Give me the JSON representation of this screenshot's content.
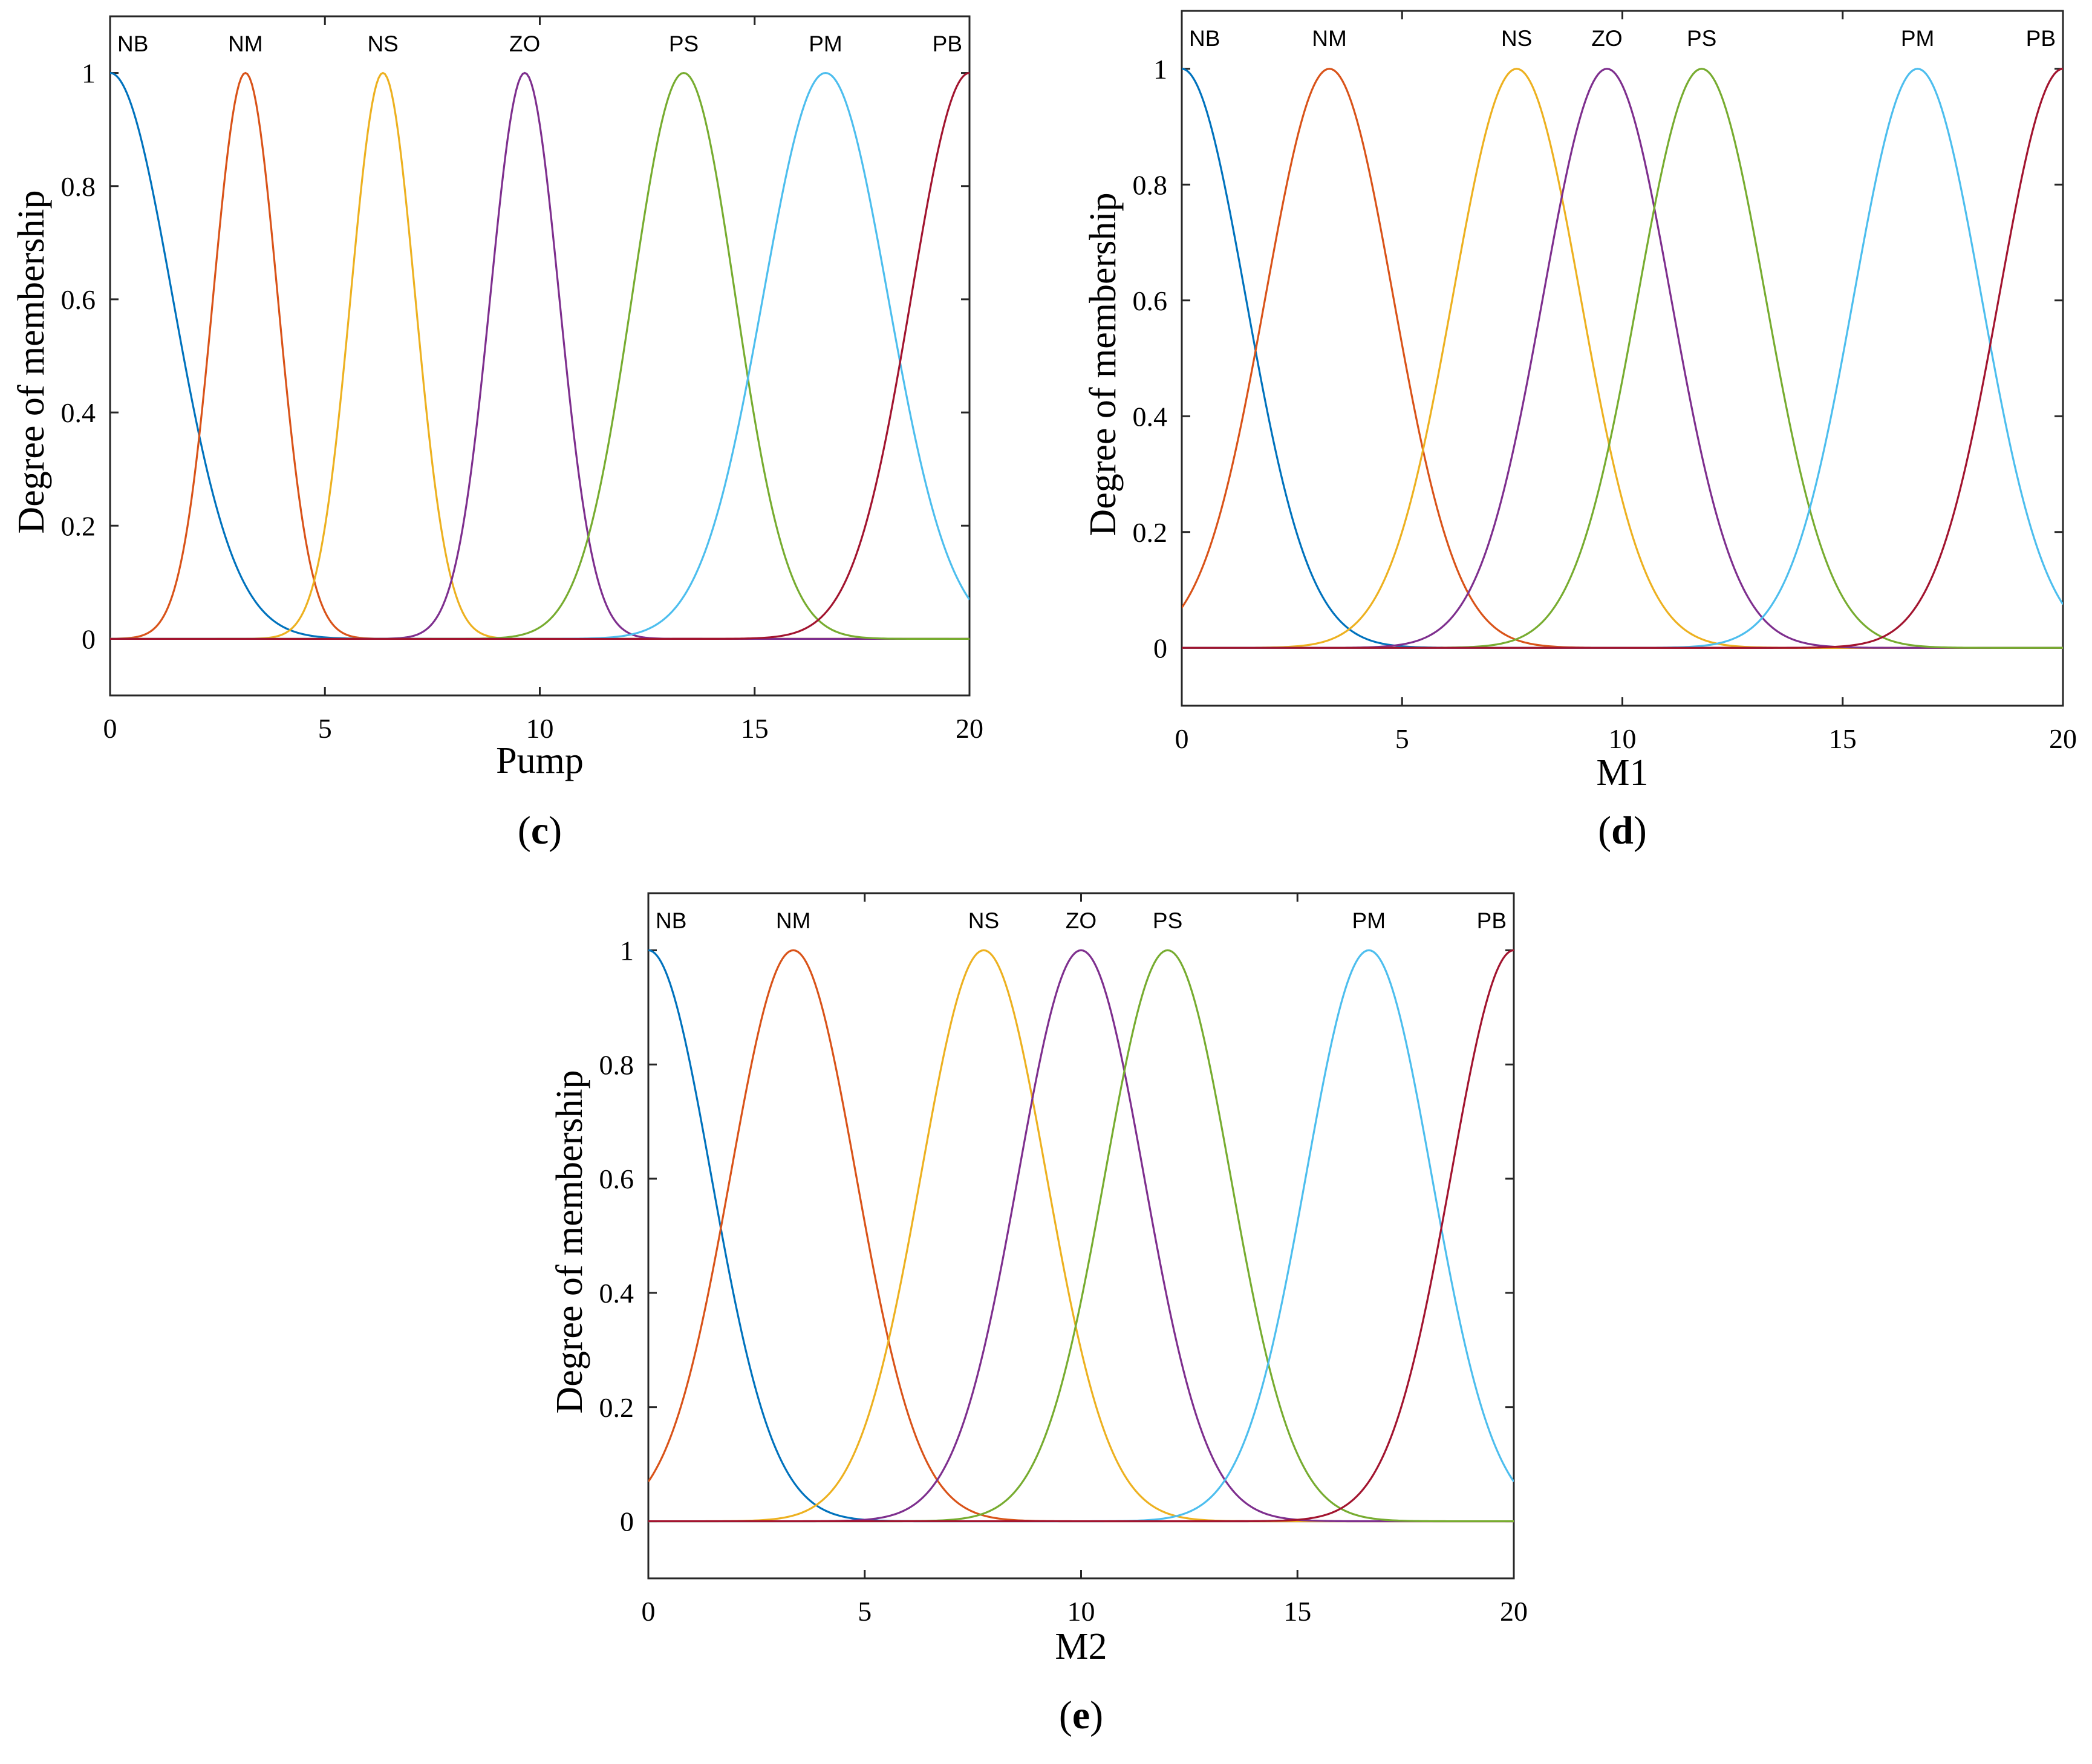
{
  "chart_data": [
    {
      "type": "line",
      "panel_label": "c",
      "xlabel": "Pump",
      "ylabel": "Degree of membership",
      "xlim": [
        0,
        20
      ],
      "ylim": [
        -0.1,
        1.1
      ],
      "xticks": [
        "0",
        "5",
        "10",
        "15",
        "20"
      ],
      "yticks": [
        "0",
        "0.2",
        "0.4",
        "0.6",
        "0.8",
        "1"
      ],
      "grid": false,
      "series": [
        {
          "name": "NB",
          "color": "#0072BD",
          "center": 0.0,
          "sigma": 1.45
        },
        {
          "name": "NM",
          "color": "#D95319",
          "center": 3.15,
          "sigma": 0.75
        },
        {
          "name": "NS",
          "color": "#EDB120",
          "center": 6.35,
          "sigma": 0.75
        },
        {
          "name": "ZO",
          "color": "#7E2F8E",
          "center": 9.65,
          "sigma": 0.8
        },
        {
          "name": "PS",
          "color": "#77AC30",
          "center": 13.35,
          "sigma": 1.2
        },
        {
          "name": "PM",
          "color": "#4DBEEE",
          "center": 16.65,
          "sigma": 1.45
        },
        {
          "name": "PB",
          "color": "#A2142F",
          "center": 20.0,
          "sigma": 1.35
        }
      ]
    },
    {
      "type": "line",
      "panel_label": "d",
      "xlabel": "M1",
      "ylabel": "Degree of membership",
      "xlim": [
        0,
        20
      ],
      "ylim": [
        -0.1,
        1.1
      ],
      "xticks": [
        "0",
        "5",
        "10",
        "15",
        "20"
      ],
      "yticks": [
        "0",
        "0.2",
        "0.4",
        "0.6",
        "0.8",
        "1"
      ],
      "grid": false,
      "series": [
        {
          "name": "NB",
          "color": "#0072BD",
          "center": 0.0,
          "sigma": 1.45
        },
        {
          "name": "NM",
          "color": "#D95319",
          "center": 3.35,
          "sigma": 1.45
        },
        {
          "name": "NS",
          "color": "#EDB120",
          "center": 7.6,
          "sigma": 1.45
        },
        {
          "name": "ZO",
          "color": "#7E2F8E",
          "center": 9.65,
          "sigma": 1.45
        },
        {
          "name": "PS",
          "color": "#77AC30",
          "center": 11.8,
          "sigma": 1.45
        },
        {
          "name": "PM",
          "color": "#4DBEEE",
          "center": 16.7,
          "sigma": 1.45
        },
        {
          "name": "PB",
          "color": "#A2142F",
          "center": 20.0,
          "sigma": 1.45
        }
      ]
    },
    {
      "type": "line",
      "panel_label": "e",
      "xlabel": "M2",
      "ylabel": "Degree of membership",
      "xlim": [
        0,
        20
      ],
      "ylim": [
        -0.1,
        1.1
      ],
      "xticks": [
        "0",
        "5",
        "10",
        "15",
        "20"
      ],
      "yticks": [
        "0",
        "0.2",
        "0.4",
        "0.6",
        "0.8",
        "1"
      ],
      "grid": false,
      "series": [
        {
          "name": "NB",
          "color": "#0072BD",
          "center": 0.0,
          "sigma": 1.45
        },
        {
          "name": "NM",
          "color": "#D95319",
          "center": 3.35,
          "sigma": 1.45
        },
        {
          "name": "NS",
          "color": "#EDB120",
          "center": 7.75,
          "sigma": 1.45
        },
        {
          "name": "ZO",
          "color": "#7E2F8E",
          "center": 10.0,
          "sigma": 1.45
        },
        {
          "name": "PS",
          "color": "#77AC30",
          "center": 12.0,
          "sigma": 1.45
        },
        {
          "name": "PM",
          "color": "#4DBEEE",
          "center": 16.65,
          "sigma": 1.45
        },
        {
          "name": "PB",
          "color": "#A2142F",
          "center": 20.0,
          "sigma": 1.45
        }
      ]
    }
  ]
}
